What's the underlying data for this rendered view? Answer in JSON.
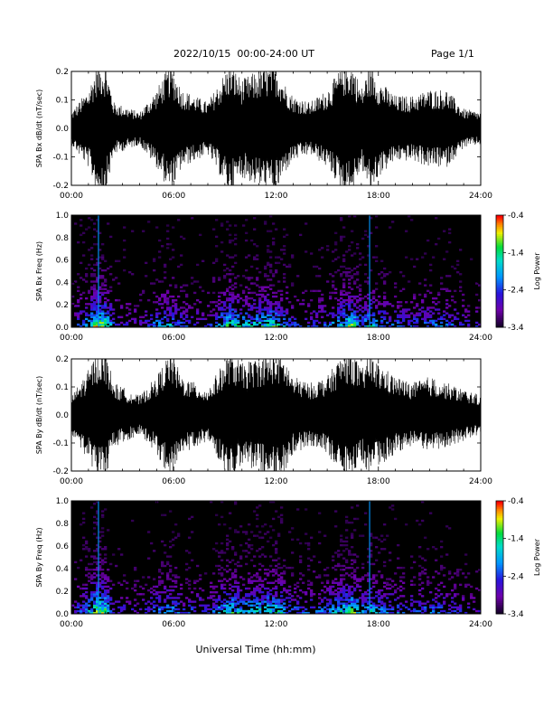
{
  "header": {
    "title": "2022/10/15  00:00-24:00 UT",
    "page": "Page 1/1"
  },
  "xaxis_label": "Universal Time (hh:mm)",
  "colors": {
    "waveform": "#000000",
    "spectrogram_bg": "#000000",
    "frame": "#000000"
  },
  "chart_data": [
    {
      "type": "line",
      "ylabel": "SPA Bx dB/dt (nT/sec)",
      "xlim": [
        "00:00",
        "24:00"
      ],
      "ylim": [
        -0.2,
        0.2
      ],
      "x_ticks": [
        "00:00",
        "06:00",
        "12:00",
        "18:00",
        "24:00"
      ],
      "y_ticks": [
        "-0.2",
        "-0.1",
        "0.0",
        "0.1",
        "0.2"
      ],
      "amplitude_envelope": {
        "hours": [
          0,
          1,
          1.5,
          2,
          2.5,
          4,
          5,
          5.8,
          6.5,
          8,
          9.3,
          10,
          11,
          12,
          12.5,
          13,
          14,
          15,
          16,
          16.5,
          17,
          17.5,
          18,
          19,
          20,
          21,
          22,
          23,
          24
        ],
        "amplitude": [
          0.05,
          0.12,
          0.2,
          0.2,
          0.08,
          0.05,
          0.12,
          0.2,
          0.12,
          0.08,
          0.2,
          0.15,
          0.18,
          0.2,
          0.14,
          0.1,
          0.08,
          0.12,
          0.2,
          0.2,
          0.12,
          0.2,
          0.15,
          0.1,
          0.1,
          0.12,
          0.12,
          0.06,
          0.05
        ]
      }
    },
    {
      "type": "heatmap",
      "ylabel": "SPA Bx Freq (Hz)",
      "xlim": [
        "00:00",
        "24:00"
      ],
      "ylim": [
        0.0,
        1.0
      ],
      "x_ticks": [
        "00:00",
        "06:00",
        "12:00",
        "18:00",
        "24:00"
      ],
      "y_ticks": [
        "0.0",
        "0.2",
        "0.4",
        "0.6",
        "0.8",
        "1.0"
      ],
      "colorbar": {
        "label": "Log Power",
        "range": [
          -3.4,
          -0.4
        ],
        "ticks": [
          "-0.4",
          "-1.4",
          "-2.4",
          "-3.4"
        ]
      },
      "activity_profile": {
        "hours": [
          0,
          1,
          1.5,
          2,
          2.5,
          4,
          5,
          5.8,
          6.5,
          8,
          9.3,
          10,
          11,
          12,
          12.5,
          13,
          14,
          15,
          16,
          16.5,
          17,
          17.5,
          18,
          19,
          20,
          21,
          22,
          23,
          24
        ],
        "level": [
          0.25,
          0.6,
          1.0,
          0.9,
          0.35,
          0.25,
          0.5,
          0.6,
          0.4,
          0.3,
          0.8,
          0.6,
          0.7,
          0.75,
          0.5,
          0.4,
          0.35,
          0.45,
          0.75,
          0.85,
          0.5,
          0.7,
          0.55,
          0.4,
          0.4,
          0.45,
          0.45,
          0.3,
          0.25
        ]
      }
    },
    {
      "type": "line",
      "ylabel": "SPA By dB/dt (nT/sec)",
      "xlim": [
        "00:00",
        "24:00"
      ],
      "ylim": [
        -0.2,
        0.2
      ],
      "x_ticks": [
        "00:00",
        "06:00",
        "12:00",
        "18:00",
        "24:00"
      ],
      "y_ticks": [
        "-0.2",
        "-0.1",
        "0.0",
        "0.1",
        "0.2"
      ],
      "amplitude_envelope": {
        "hours": [
          0,
          1,
          1.5,
          2,
          2.5,
          4,
          5,
          5.8,
          6.5,
          8,
          9.3,
          10,
          11,
          12,
          12.5,
          13,
          14,
          15,
          16,
          16.5,
          17,
          17.5,
          18,
          19,
          20,
          21,
          22,
          23,
          24
        ],
        "amplitude": [
          0.06,
          0.14,
          0.2,
          0.2,
          0.1,
          0.06,
          0.12,
          0.2,
          0.12,
          0.08,
          0.2,
          0.16,
          0.18,
          0.2,
          0.18,
          0.12,
          0.1,
          0.12,
          0.2,
          0.2,
          0.14,
          0.2,
          0.16,
          0.12,
          0.1,
          0.12,
          0.1,
          0.08,
          0.06
        ]
      }
    },
    {
      "type": "heatmap",
      "ylabel": "SPA By Freq (Hz)",
      "xlim": [
        "00:00",
        "24:00"
      ],
      "ylim": [
        0.0,
        1.0
      ],
      "x_ticks": [
        "00:00",
        "06:00",
        "12:00",
        "18:00",
        "24:00"
      ],
      "y_ticks": [
        "0.0",
        "0.2",
        "0.4",
        "0.6",
        "0.8",
        "1.0"
      ],
      "colorbar": {
        "label": "Log Power",
        "range": [
          -3.4,
          -0.4
        ],
        "ticks": [
          "-0.4",
          "-1.4",
          "-2.4",
          "-3.4"
        ]
      },
      "activity_profile": {
        "hours": [
          0,
          1,
          1.5,
          2,
          2.5,
          4,
          5,
          5.8,
          6.5,
          8,
          9.3,
          10,
          11,
          12,
          12.5,
          13,
          14,
          15,
          16,
          16.5,
          17,
          17.5,
          18,
          19,
          20,
          21,
          22,
          23,
          24
        ],
        "level": [
          0.25,
          0.6,
          1.0,
          0.9,
          0.35,
          0.25,
          0.5,
          0.6,
          0.4,
          0.3,
          0.8,
          0.6,
          0.7,
          0.75,
          0.55,
          0.45,
          0.4,
          0.45,
          0.75,
          0.85,
          0.5,
          0.7,
          0.55,
          0.45,
          0.4,
          0.45,
          0.4,
          0.3,
          0.25
        ]
      }
    }
  ]
}
